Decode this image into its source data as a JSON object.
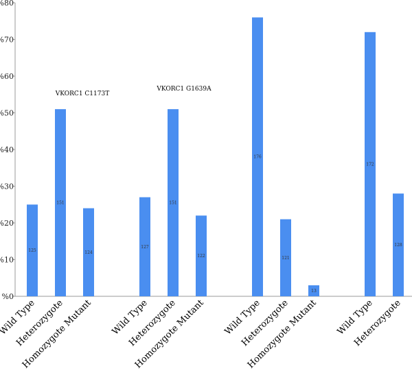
{
  "chart_data": {
    "type": "bar",
    "title": "",
    "xlabel": "",
    "ylabel": "",
    "ylim": [
      0,
      80
    ],
    "y_ticks": [
      {
        "value": 0,
        "label": "%0"
      },
      {
        "value": 10,
        "label": "%10"
      },
      {
        "value": 20,
        "label": "%20"
      },
      {
        "value": 30,
        "label": "%30"
      },
      {
        "value": 40,
        "label": "%40"
      },
      {
        "value": 50,
        "label": "%50"
      },
      {
        "value": 60,
        "label": "%60"
      },
      {
        "value": 70,
        "label": "%70"
      },
      {
        "value": 80,
        "label": "%80"
      }
    ],
    "grid": false,
    "bar_color": "#4a8ef0",
    "groups": [
      {
        "annotation": "VKORC1 C1173T",
        "bars": [
          {
            "category": "Wild Type",
            "value": 25,
            "label": "125"
          },
          {
            "category": "Heterozygote",
            "value": 51,
            "label": "151"
          },
          {
            "category": "Homozygote Mutant",
            "value": 24,
            "label": "124"
          }
        ]
      },
      {
        "annotation": "VKORC1 G1639A",
        "bars": [
          {
            "category": "Wild Type",
            "value": 27,
            "label": "127"
          },
          {
            "category": "Heterozygote",
            "value": 51,
            "label": "151"
          },
          {
            "category": "Homozygote Mutant",
            "value": 22,
            "label": "122"
          }
        ]
      },
      {
        "annotation": "",
        "bars": [
          {
            "category": "Wild Type",
            "value": 76,
            "label": "176"
          },
          {
            "category": "Heterozygote",
            "value": 21,
            "label": "121"
          },
          {
            "category": "Homozygote Mutant",
            "value": 3,
            "label": "13"
          }
        ]
      },
      {
        "annotation": "",
        "bars": [
          {
            "category": "Wild Type",
            "value": 72,
            "label": "172"
          },
          {
            "category": "Heterozygote",
            "value": 28,
            "label": "128"
          }
        ]
      }
    ]
  }
}
